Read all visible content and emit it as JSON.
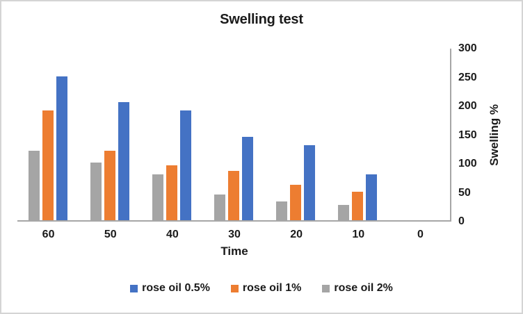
{
  "window": {
    "background": "#ffffff",
    "border_color": "#d4d4d4"
  },
  "chart_data": {
    "type": "bar",
    "title": "Swelling test",
    "xlabel": "Time",
    "ylabel": "Swelling %",
    "categories": [
      "60",
      "50",
      "40",
      "30",
      "20",
      "10",
      "0"
    ],
    "series": [
      {
        "name": "rose oil 0.5%",
        "color": "#4472C4",
        "values": [
          250,
          205,
          190,
          145,
          130,
          80,
          0
        ]
      },
      {
        "name": "rose oil 1%",
        "color": "#ED7D31",
        "values": [
          190,
          120,
          95,
          85,
          62,
          50,
          0
        ]
      },
      {
        "name": "rose oil 2%",
        "color": "#A5A5A5",
        "values": [
          120,
          100,
          80,
          45,
          32,
          26,
          0
        ]
      }
    ],
    "bar_display_order_in_group": [
      2,
      1,
      0
    ],
    "y_axis": {
      "min": 0,
      "max": 300,
      "tick_step": 50,
      "ticks": [
        0,
        50,
        100,
        150,
        200,
        250,
        300
      ],
      "side": "right"
    },
    "x_axis_direction": "descending",
    "gridlines": false,
    "legend_position": "bottom",
    "axis_line_color": "#a6a6a6",
    "text_color": "#1a1a1a"
  }
}
